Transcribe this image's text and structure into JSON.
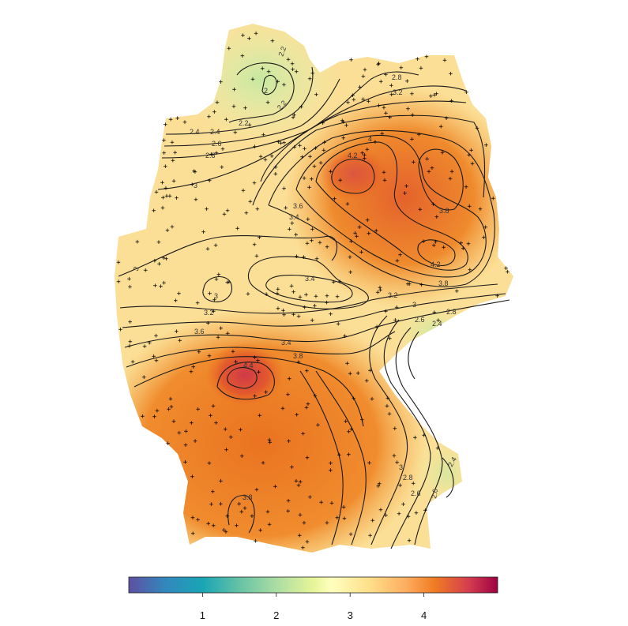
{
  "contour_labels": [
    "2.2",
    "2.2",
    "2",
    "2.2",
    "2.4",
    "2.4",
    "2.6",
    "2.8",
    "2.8",
    "3",
    "3.2",
    "4",
    "4.2",
    "3.6",
    "3.4",
    "3.8",
    "3",
    "4.2",
    "3.8",
    "3.4",
    "3",
    "3.2",
    "3",
    "2.8",
    "2.6",
    "2.4",
    "3.2",
    "3.6",
    "3.4",
    "3.8",
    "4.4",
    "3",
    "2.8",
    "2.6",
    "2.4",
    "2.6",
    "3.8"
  ],
  "colorbar": {
    "ticks": [
      "1",
      "2",
      "3",
      "4"
    ],
    "tick_values": [
      1,
      2,
      3,
      4
    ],
    "range": [
      0,
      5
    ],
    "colors": [
      "#5e4fa2",
      "#3288bd",
      "#66c2a5",
      "#abdda4",
      "#e6f598",
      "#ffffbf",
      "#fee08b",
      "#fdae61",
      "#f46d43",
      "#d53e4f",
      "#9e0142"
    ]
  },
  "colors": {
    "land_low": "#d9f0a3",
    "land_mid": "#fde9a0",
    "land_high": "#ec7a1c",
    "land_peak": "#d9482b"
  }
}
